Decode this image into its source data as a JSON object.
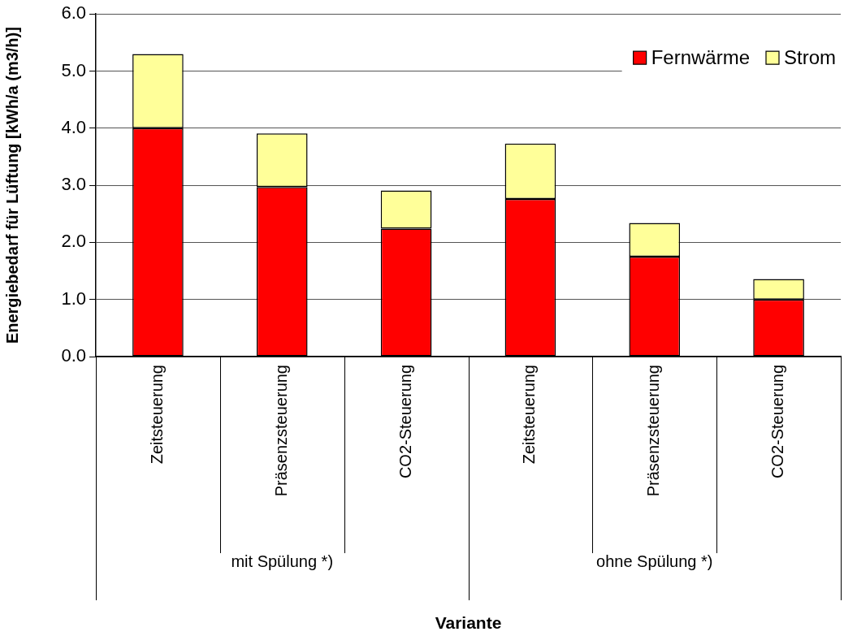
{
  "chart_data": {
    "type": "bar",
    "stacked": true,
    "ylabel": "Energiebedarf für Lüftung [kWh/a (m3/h)]",
    "categories": [
      "Zeitsteuerung",
      "Präsenzsteuerung",
      "CO2-Steuerung",
      "Zeitsteuerung",
      "Präsenzsteuerung",
      "CO2-Steuerung"
    ],
    "series": [
      {
        "name": "Fernwärme",
        "color": "#ff0000",
        "values": [
          4.0,
          2.97,
          2.24,
          2.76,
          1.75,
          1.0
        ]
      },
      {
        "name": "Strom",
        "color": "#ffff99",
        "values": [
          1.3,
          0.94,
          0.67,
          0.97,
          0.59,
          0.36
        ]
      }
    ],
    "ylim": [
      0,
      6
    ],
    "yticks": [
      {
        "value": 0,
        "label": "0.0"
      },
      {
        "value": 1,
        "label": "1.0"
      },
      {
        "value": 2,
        "label": "2.0"
      },
      {
        "value": 3,
        "label": "3.0"
      },
      {
        "value": 4,
        "label": "4.0"
      },
      {
        "value": 5,
        "label": "5.0"
      },
      {
        "value": 6,
        "label": "6.0"
      }
    ],
    "annotations": [
      "mit Spülung *)",
      "ohne Spülung *)",
      "Variante"
    ],
    "grid": "y",
    "legend": "top right"
  }
}
